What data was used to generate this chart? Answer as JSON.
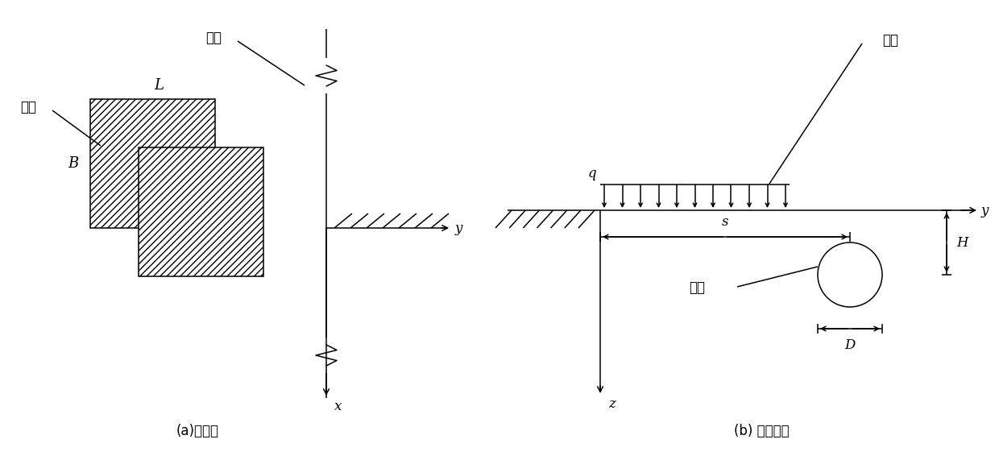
{
  "fig_width": 12.4,
  "fig_height": 5.66,
  "dpi": 100,
  "background_color": "#ffffff",
  "line_color": "#000000",
  "label_a": "(a)平面图",
  "label_b": "(b) 横截面图",
  "text_tunnel_a": "隧道",
  "text_load_a": "堆载",
  "text_L": "L",
  "text_B": "B",
  "text_x": "x",
  "text_y_a": "y",
  "text_tunnel_b": "隧道",
  "text_load_b": "堆载",
  "text_q": "q",
  "text_s": "s",
  "text_H": "H",
  "text_D": "D",
  "text_y_b": "y",
  "text_z": "z"
}
